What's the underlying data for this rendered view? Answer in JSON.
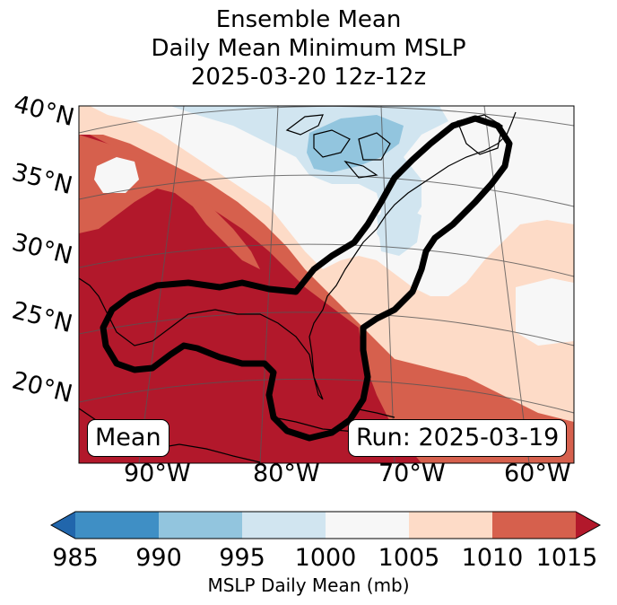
{
  "title": {
    "line1": "Ensemble Mean",
    "line2": "Daily Mean Minimum MSLP",
    "line3": "2025-03-20 12z-12z"
  },
  "lat_labels": [
    "40°N",
    "35°N",
    "30°N",
    "25°N",
    "20°N"
  ],
  "lon_labels": [
    "90°W",
    "80°W",
    "70°W",
    "60°W"
  ],
  "box_left": "Mean",
  "box_right": "Run: 2025-03-19",
  "colorbar": {
    "ticks": [
      "985",
      "990",
      "995",
      "1000",
      "1005",
      "1010",
      "1015"
    ],
    "label": "MSLP Daily Mean (mb)",
    "colors": [
      "#2166ac",
      "#3f8fc5",
      "#92c5de",
      "#d1e5f0",
      "#f7f7f7",
      "#fddbc7",
      "#d6604d",
      "#b2182b"
    ]
  }
}
